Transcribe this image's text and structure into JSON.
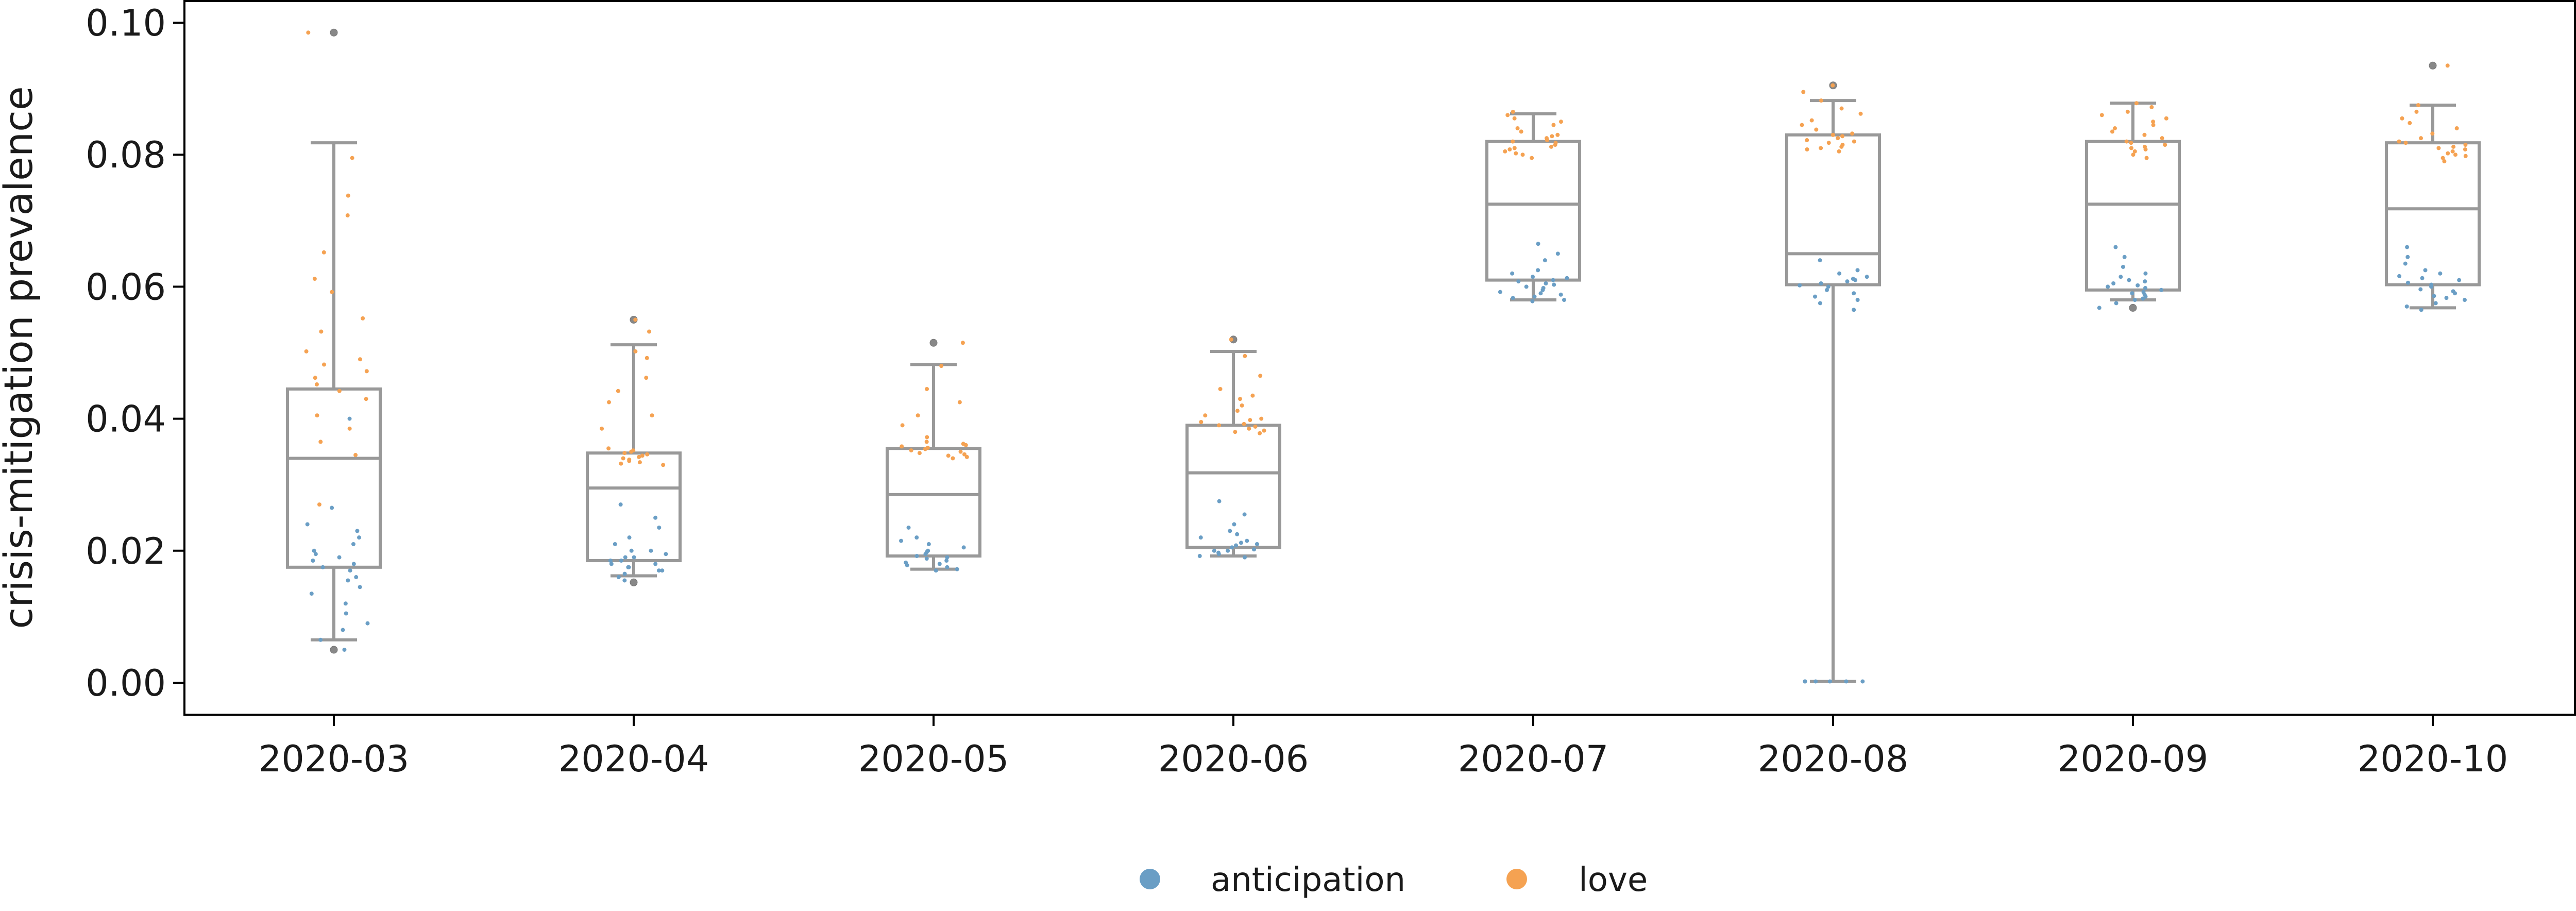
{
  "chart_data": {
    "type": "box",
    "title": "",
    "xlabel": "",
    "ylabel": "crisis-mitigation prevalence",
    "ylim": [
      -0.005,
      0.103
    ],
    "y_ticks": [
      "0.00",
      "0.02",
      "0.04",
      "0.06",
      "0.08",
      "0.10"
    ],
    "y_tick_values": [
      0.0,
      0.02,
      0.04,
      0.06,
      0.08,
      0.1
    ],
    "categories": [
      "2020-03",
      "2020-04",
      "2020-05",
      "2020-06",
      "2020-07",
      "2020-08",
      "2020-09",
      "2020-10"
    ],
    "box_color": "#999999",
    "boxes": [
      {
        "month": "2020-03",
        "q1": 0.0175,
        "median": 0.034,
        "q3": 0.0445,
        "whisker_low": 0.0065,
        "whisker_high": 0.0818,
        "outliers": [
          0.0985,
          0.005
        ]
      },
      {
        "month": "2020-04",
        "q1": 0.0185,
        "median": 0.0295,
        "q3": 0.0348,
        "whisker_low": 0.0162,
        "whisker_high": 0.0512,
        "outliers": [
          0.055,
          0.0152
        ]
      },
      {
        "month": "2020-05",
        "q1": 0.0192,
        "median": 0.0285,
        "q3": 0.0355,
        "whisker_low": 0.0172,
        "whisker_high": 0.0482,
        "outliers": [
          0.0515
        ]
      },
      {
        "month": "2020-06",
        "q1": 0.0205,
        "median": 0.0318,
        "q3": 0.039,
        "whisker_low": 0.0192,
        "whisker_high": 0.0502,
        "outliers": [
          0.052
        ]
      },
      {
        "month": "2020-07",
        "q1": 0.061,
        "median": 0.0725,
        "q3": 0.082,
        "whisker_low": 0.058,
        "whisker_high": 0.0862,
        "outliers": []
      },
      {
        "month": "2020-08",
        "q1": 0.0603,
        "median": 0.065,
        "q3": 0.083,
        "whisker_low": 0.0002,
        "whisker_high": 0.0882,
        "outliers": [
          0.0905
        ]
      },
      {
        "month": "2020-09",
        "q1": 0.0595,
        "median": 0.0725,
        "q3": 0.082,
        "whisker_low": 0.058,
        "whisker_high": 0.0878,
        "outliers": [
          0.0568
        ]
      },
      {
        "month": "2020-10",
        "q1": 0.0603,
        "median": 0.0718,
        "q3": 0.0818,
        "whisker_low": 0.0568,
        "whisker_high": 0.0875,
        "outliers": [
          0.0935
        ]
      }
    ],
    "series": [
      {
        "name": "anticipation",
        "color": "#6a9ec5",
        "values_by_month": [
          [
            0.005,
            0.0065,
            0.008,
            0.009,
            0.0105,
            0.012,
            0.0135,
            0.0145,
            0.0155,
            0.016,
            0.017,
            0.0175,
            0.018,
            0.0185,
            0.019,
            0.0195,
            0.02,
            0.021,
            0.022,
            0.023,
            0.024,
            0.0265,
            0.04
          ],
          [
            0.0155,
            0.016,
            0.0165,
            0.017,
            0.017,
            0.0175,
            0.0175,
            0.018,
            0.018,
            0.0185,
            0.0185,
            0.019,
            0.019,
            0.0195,
            0.02,
            0.02,
            0.021,
            0.022,
            0.0235,
            0.025,
            0.027
          ],
          [
            0.017,
            0.0172,
            0.0175,
            0.0178,
            0.018,
            0.0182,
            0.0185,
            0.0188,
            0.019,
            0.0192,
            0.0195,
            0.0198,
            0.02,
            0.0205,
            0.021,
            0.0215,
            0.022,
            0.0235
          ],
          [
            0.019,
            0.0192,
            0.0195,
            0.0197,
            0.02,
            0.02,
            0.0202,
            0.0205,
            0.0208,
            0.021,
            0.0212,
            0.0215,
            0.022,
            0.0225,
            0.023,
            0.024,
            0.0255,
            0.0275
          ],
          [
            0.0578,
            0.058,
            0.0583,
            0.0585,
            0.0588,
            0.059,
            0.0592,
            0.0595,
            0.0598,
            0.06,
            0.0603,
            0.0605,
            0.0608,
            0.061,
            0.0613,
            0.0615,
            0.062,
            0.0625,
            0.064,
            0.065,
            0.0665
          ],
          [
            0.0002,
            0.0002,
            0.0002,
            0.0002,
            0.0002,
            0.0002,
            0.0565,
            0.0575,
            0.058,
            0.0585,
            0.059,
            0.0595,
            0.06,
            0.0602,
            0.0605,
            0.0608,
            0.061,
            0.0612,
            0.0615,
            0.062,
            0.0625,
            0.064
          ],
          [
            0.0568,
            0.0575,
            0.058,
            0.0582,
            0.0585,
            0.0588,
            0.059,
            0.0592,
            0.0595,
            0.0598,
            0.06,
            0.0602,
            0.0605,
            0.0608,
            0.061,
            0.0615,
            0.062,
            0.063,
            0.0645,
            0.066
          ],
          [
            0.0565,
            0.057,
            0.0575,
            0.058,
            0.0583,
            0.0586,
            0.059,
            0.0593,
            0.0596,
            0.06,
            0.0603,
            0.0606,
            0.061,
            0.0613,
            0.0616,
            0.062,
            0.0625,
            0.0635,
            0.0645,
            0.066
          ]
        ]
      },
      {
        "name": "love",
        "color": "#f5a252",
        "values_by_month": [
          [
            0.0985,
            0.0795,
            0.0738,
            0.0708,
            0.0652,
            0.0612,
            0.0592,
            0.0552,
            0.0532,
            0.0502,
            0.049,
            0.0482,
            0.0472,
            0.0462,
            0.0452,
            0.0442,
            0.043,
            0.0405,
            0.0385,
            0.0365,
            0.0345,
            0.027
          ],
          [
            0.055,
            0.0532,
            0.0502,
            0.0492,
            0.0462,
            0.0442,
            0.0425,
            0.0405,
            0.0385,
            0.0355,
            0.0352,
            0.035,
            0.0348,
            0.0346,
            0.0344,
            0.0342,
            0.034,
            0.0338,
            0.0336,
            0.0334,
            0.0332,
            0.033
          ],
          [
            0.0515,
            0.048,
            0.0445,
            0.0425,
            0.0405,
            0.039,
            0.0372,
            0.0365,
            0.0362,
            0.036,
            0.0358,
            0.0356,
            0.0354,
            0.0352,
            0.035,
            0.0348,
            0.0346,
            0.0344,
            0.0342,
            0.034
          ],
          [
            0.052,
            0.0495,
            0.0465,
            0.0445,
            0.0435,
            0.043,
            0.042,
            0.0412,
            0.0405,
            0.04,
            0.0398,
            0.0395,
            0.0392,
            0.039,
            0.0388,
            0.0385,
            0.0382,
            0.038,
            0.0378
          ],
          [
            0.0865,
            0.086,
            0.0855,
            0.085,
            0.0845,
            0.084,
            0.0835,
            0.083,
            0.0828,
            0.0825,
            0.0822,
            0.082,
            0.0818,
            0.0815,
            0.0812,
            0.081,
            0.0808,
            0.0805,
            0.0802,
            0.08,
            0.0795
          ],
          [
            0.0905,
            0.0895,
            0.0882,
            0.087,
            0.0862,
            0.0852,
            0.0845,
            0.0838,
            0.0832,
            0.083,
            0.0828,
            0.0825,
            0.0822,
            0.082,
            0.0818,
            0.0815,
            0.0812,
            0.081,
            0.0808,
            0.0805
          ],
          [
            0.0878,
            0.0872,
            0.0865,
            0.086,
            0.0855,
            0.085,
            0.0845,
            0.084,
            0.0835,
            0.083,
            0.0825,
            0.082,
            0.0818,
            0.0815,
            0.0812,
            0.081,
            0.0808,
            0.0805,
            0.08,
            0.0795
          ],
          [
            0.0935,
            0.0875,
            0.0865,
            0.0855,
            0.0848,
            0.084,
            0.0832,
            0.0825,
            0.082,
            0.0818,
            0.0815,
            0.0812,
            0.081,
            0.0808,
            0.0805,
            0.0802,
            0.08,
            0.0798,
            0.0795,
            0.079
          ]
        ]
      }
    ],
    "legend": {
      "position": "bottom-center",
      "entries": [
        {
          "label": "anticipation",
          "color": "#6a9ec5"
        },
        {
          "label": "love",
          "color": "#f5a252"
        }
      ]
    },
    "grid": false
  }
}
